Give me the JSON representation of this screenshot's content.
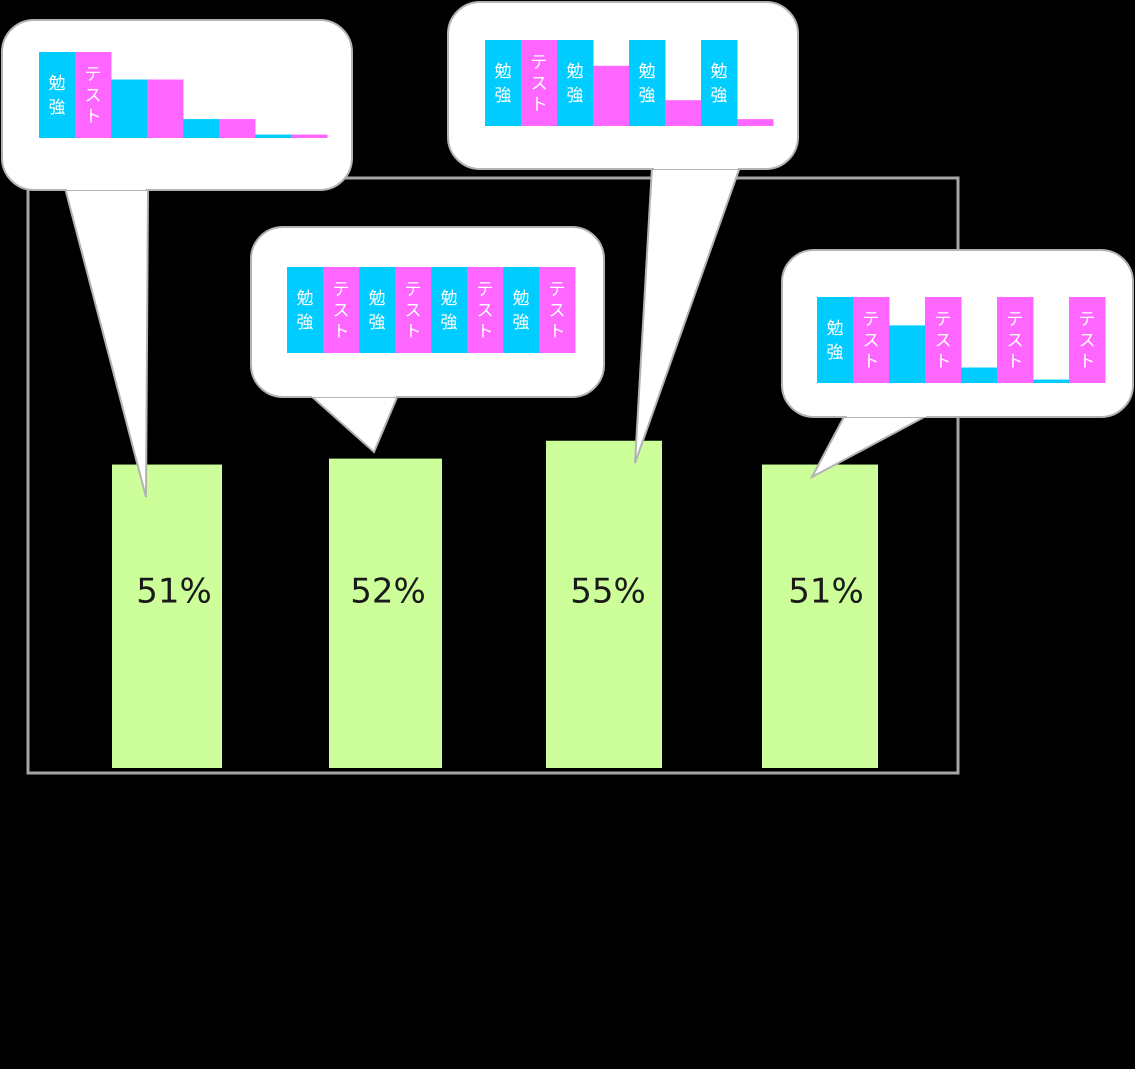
{
  "colors": {
    "background": "#000000",
    "frame": "#a6a6a6",
    "bar": "#ccff99",
    "study": "#00ccff",
    "test": "#ff66ff",
    "bubble_fill": "#ffffff",
    "bubble_stroke": "#b3b3b3",
    "cell_text": "#ffffff",
    "value_text": "#1a1a1a"
  },
  "labels": {
    "study": "勉強",
    "test": "テスト"
  },
  "chart_data": {
    "type": "bar",
    "categories": [
      "",
      "",
      "",
      ""
    ],
    "values": [
      51,
      52,
      55,
      51
    ],
    "value_labels": [
      "51%",
      "52%",
      "55%",
      "51%"
    ],
    "unit": "%",
    "ylim": [
      0,
      100
    ],
    "grid": false,
    "legend": "none",
    "callouts": [
      {
        "note": "first bar",
        "cells": [
          {
            "kind": "study",
            "level": 1.0,
            "labeled": true
          },
          {
            "kind": "test",
            "level": 1.0,
            "labeled": true
          },
          {
            "kind": "study",
            "level": 0.68,
            "labeled": false
          },
          {
            "kind": "test",
            "level": 0.68,
            "labeled": false
          },
          {
            "kind": "study",
            "level": 0.22,
            "labeled": false
          },
          {
            "kind": "test",
            "level": 0.22,
            "labeled": false
          },
          {
            "kind": "study",
            "level": 0.04,
            "labeled": false
          },
          {
            "kind": "test",
            "level": 0.04,
            "labeled": false
          }
        ]
      },
      {
        "note": "second bar",
        "cells": [
          {
            "kind": "study",
            "level": 1.0,
            "labeled": true
          },
          {
            "kind": "test",
            "level": 1.0,
            "labeled": true
          },
          {
            "kind": "study",
            "level": 1.0,
            "labeled": true
          },
          {
            "kind": "test",
            "level": 1.0,
            "labeled": true
          },
          {
            "kind": "study",
            "level": 1.0,
            "labeled": true
          },
          {
            "kind": "test",
            "level": 1.0,
            "labeled": true
          },
          {
            "kind": "study",
            "level": 1.0,
            "labeled": true
          },
          {
            "kind": "test",
            "level": 1.0,
            "labeled": true
          }
        ]
      },
      {
        "note": "third bar",
        "cells": [
          {
            "kind": "study",
            "level": 1.0,
            "labeled": true
          },
          {
            "kind": "test",
            "level": 1.0,
            "labeled": true
          },
          {
            "kind": "study",
            "level": 1.0,
            "labeled": true
          },
          {
            "kind": "test",
            "level": 0.7,
            "labeled": false
          },
          {
            "kind": "study",
            "level": 1.0,
            "labeled": true
          },
          {
            "kind": "test",
            "level": 0.3,
            "labeled": false
          },
          {
            "kind": "study",
            "level": 1.0,
            "labeled": true
          },
          {
            "kind": "test",
            "level": 0.08,
            "labeled": false
          }
        ]
      },
      {
        "note": "fourth bar",
        "cells": [
          {
            "kind": "study",
            "level": 1.0,
            "labeled": true
          },
          {
            "kind": "test",
            "level": 1.0,
            "labeled": true
          },
          {
            "kind": "study",
            "level": 0.67,
            "labeled": false
          },
          {
            "kind": "test",
            "level": 1.0,
            "labeled": true
          },
          {
            "kind": "study",
            "level": 0.18,
            "labeled": false
          },
          {
            "kind": "test",
            "level": 1.0,
            "labeled": true
          },
          {
            "kind": "study",
            "level": 0.04,
            "labeled": false
          },
          {
            "kind": "test",
            "level": 1.0,
            "labeled": true
          }
        ]
      }
    ]
  }
}
